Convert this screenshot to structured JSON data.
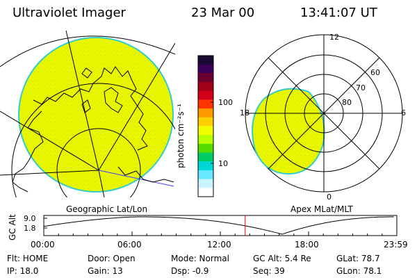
{
  "header": {
    "instrument": "Ultraviolet Imager",
    "date": "23 Mar 00",
    "time": "13:41:07 UT"
  },
  "colorbar": {
    "unit_label": "photon cm⁻²s⁻¹",
    "ticks": [
      "100",
      "10"
    ],
    "colors": [
      "#1a0a33",
      "#3a0057",
      "#6b0030",
      "#a0001a",
      "#d0001a",
      "#ff3300",
      "#ff9900",
      "#ffd000",
      "#f0ff00",
      "#b8ff00",
      "#55dd00",
      "#00cc66",
      "#00d8d8",
      "#66e8ff",
      "#c8f4ff",
      "#ffffff"
    ]
  },
  "geo_panel": {
    "label": "Geographic Lat/Lon",
    "fill_color": "#eaf500",
    "edge_color": "#33cccc"
  },
  "mag_panel": {
    "label": "Apex MLat/MLT",
    "lat_labels": [
      "60",
      "70",
      "80"
    ],
    "mlt_labels": {
      "top": "12",
      "left": "18",
      "right": "6",
      "bottom": "0"
    },
    "fill_color": "#eaf500"
  },
  "altitude_plot": {
    "ylabel": "GC Alt",
    "yticks": [
      "9.0",
      "1.8"
    ],
    "xticks": [
      "00:00",
      "06:00",
      "12:00",
      "18:00",
      "23:59"
    ],
    "current_time_hours": 13.685,
    "marker_color": "#ff0000",
    "apogee_hours": [
      6.5,
      23.9
    ],
    "perigee_hours": 16.2
  },
  "status": {
    "flt": "Flt: HOME",
    "ip": "IP: 18.0",
    "door": "Door: Open",
    "gain": "Gain: 13",
    "mode": "Mode: Normal",
    "dsp": "Dsp:    -0.9",
    "gcalt": "GC Alt: 5.4 Re",
    "seq": "Seq: 39",
    "glat": "GLat:   78.7",
    "glon": "GLon:  78.1"
  }
}
